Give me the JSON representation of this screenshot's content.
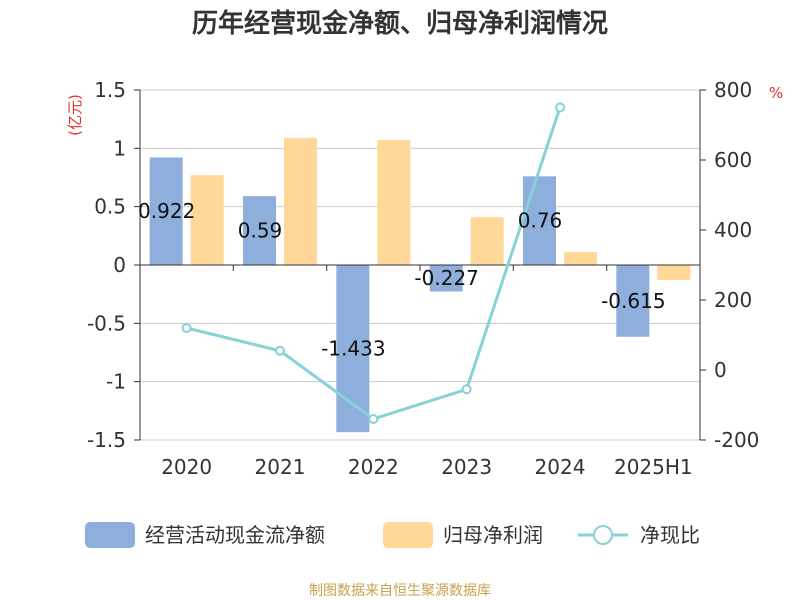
{
  "chart_data": {
    "type": "bar",
    "title": "历年经营现金净额、归母净利润情况",
    "categories": [
      "2020",
      "2021",
      "2022",
      "2023",
      "2024",
      "2025H1"
    ],
    "series": [
      {
        "name": "经营活动现金流净额",
        "type": "bar",
        "axis": "left",
        "color": "#8eaedc",
        "values": [
          0.922,
          0.59,
          -1.433,
          -0.227,
          0.76,
          -0.615
        ],
        "labels": [
          "0.922",
          "0.59",
          "-1.433",
          "-0.227",
          "0.76",
          "-0.615"
        ]
      },
      {
        "name": "归母净利润",
        "type": "bar",
        "axis": "left",
        "color": "#ffd899",
        "values": [
          0.77,
          1.09,
          1.07,
          0.41,
          0.11,
          -0.13
        ]
      },
      {
        "name": "净现比",
        "type": "line",
        "axis": "right",
        "color": "#86d2d8",
        "values": [
          120,
          55,
          -140,
          -55,
          750,
          null
        ]
      }
    ],
    "y_left": {
      "unit": "(亿元)",
      "min": -1.5,
      "max": 1.5,
      "ticks": [
        1.5,
        1,
        0.5,
        0,
        -0.5,
        -1,
        -1.5
      ],
      "tick_labels": [
        "1.5",
        "1",
        "0.5",
        "0",
        "-0.5",
        "-1",
        "-1.5"
      ]
    },
    "y_right": {
      "unit": "%",
      "min": -200,
      "max": 800,
      "ticks": [
        800,
        600,
        400,
        200,
        0,
        -200
      ],
      "tick_labels": [
        "800",
        "600",
        "400",
        "200",
        "0",
        "-200"
      ]
    },
    "legend_position": "bottom",
    "grid": true
  },
  "source": "制图数据来自恒生聚源数据库"
}
